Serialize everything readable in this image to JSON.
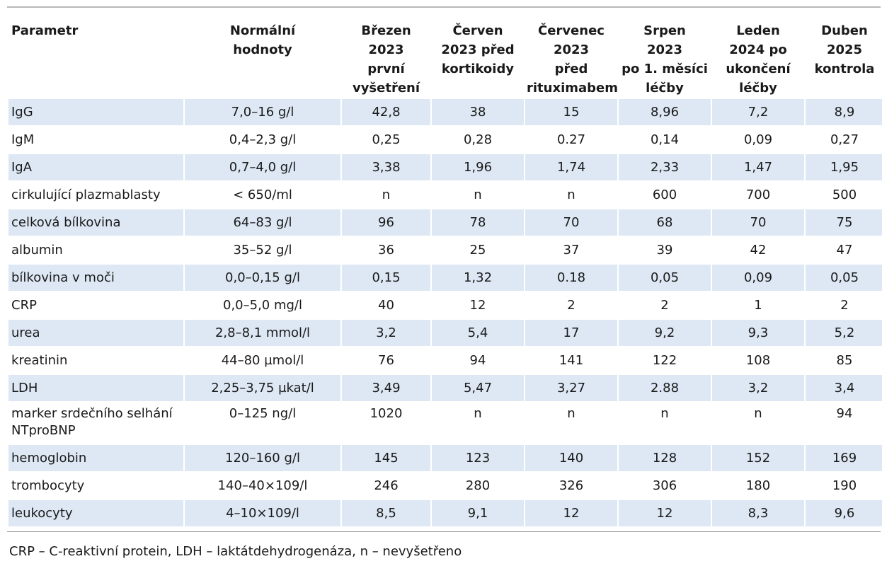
{
  "table": {
    "headers": [
      [
        "Parametr"
      ],
      [
        "Normální",
        "hodnoty"
      ],
      [
        "Březen",
        "2023",
        "první",
        "vyšetření"
      ],
      [
        "Červen",
        "2023 před",
        "kortikoidy"
      ],
      [
        "Červenec",
        "2023",
        "před",
        "rituximabem"
      ],
      [
        "Srpen",
        "2023",
        "po 1. měsíci",
        "léčby"
      ],
      [
        "Leden",
        "2024 po",
        "ukončení",
        "léčby"
      ],
      [
        "Duben",
        "2025",
        "kontrola"
      ]
    ],
    "rows": [
      {
        "shaded": true,
        "cells": [
          [
            "IgG"
          ],
          [
            "7,0–16 g/l"
          ],
          [
            "42,8"
          ],
          [
            "38"
          ],
          [
            "15"
          ],
          [
            "8,96"
          ],
          [
            "7,2"
          ],
          [
            "8,9"
          ]
        ]
      },
      {
        "shaded": false,
        "cells": [
          [
            "IgM"
          ],
          [
            "0,4–2,3 g/l"
          ],
          [
            "0,25"
          ],
          [
            "0,28"
          ],
          [
            "0.27"
          ],
          [
            "0,14"
          ],
          [
            "0,09"
          ],
          [
            "0,27"
          ]
        ]
      },
      {
        "shaded": true,
        "cells": [
          [
            "IgA"
          ],
          [
            "0,7–4,0 g/l"
          ],
          [
            "3,38"
          ],
          [
            "1,96"
          ],
          [
            "1,74"
          ],
          [
            "2,33"
          ],
          [
            "1,47"
          ],
          [
            "1,95"
          ]
        ]
      },
      {
        "shaded": false,
        "cells": [
          [
            "cirkulující plazmablasty"
          ],
          [
            "< 650/ml"
          ],
          [
            "n"
          ],
          [
            "n"
          ],
          [
            "n"
          ],
          [
            "600"
          ],
          [
            "700"
          ],
          [
            "500"
          ]
        ]
      },
      {
        "shaded": true,
        "cells": [
          [
            "celková bílkovina"
          ],
          [
            "64–83 g/l"
          ],
          [
            "96"
          ],
          [
            "78"
          ],
          [
            "70"
          ],
          [
            "68"
          ],
          [
            "70"
          ],
          [
            "75"
          ]
        ]
      },
      {
        "shaded": false,
        "cells": [
          [
            "albumin"
          ],
          [
            "35–52 g/l"
          ],
          [
            "36"
          ],
          [
            "25"
          ],
          [
            "37"
          ],
          [
            "39"
          ],
          [
            "42"
          ],
          [
            "47"
          ]
        ]
      },
      {
        "shaded": true,
        "cells": [
          [
            "bílkovina v moči"
          ],
          [
            "0,0–0,15 g/l"
          ],
          [
            "0,15"
          ],
          [
            "1,32"
          ],
          [
            "0.18"
          ],
          [
            "0,05"
          ],
          [
            "0,09"
          ],
          [
            "0,05"
          ]
        ]
      },
      {
        "shaded": false,
        "cells": [
          [
            "CRP"
          ],
          [
            "0,0–5,0 mg/l"
          ],
          [
            "40"
          ],
          [
            "12"
          ],
          [
            "2"
          ],
          [
            "2"
          ],
          [
            "1"
          ],
          [
            "2"
          ]
        ]
      },
      {
        "shaded": true,
        "cells": [
          [
            "urea"
          ],
          [
            "2,8–8,1 mmol/l"
          ],
          [
            "3,2"
          ],
          [
            "5,4"
          ],
          [
            "17"
          ],
          [
            "9,2"
          ],
          [
            "9,3"
          ],
          [
            "5,2"
          ]
        ]
      },
      {
        "shaded": false,
        "cells": [
          [
            "kreatinin"
          ],
          [
            "44–80 µmol/l"
          ],
          [
            "76"
          ],
          [
            "94"
          ],
          [
            "141"
          ],
          [
            "122"
          ],
          [
            "108"
          ],
          [
            "85"
          ]
        ]
      },
      {
        "shaded": true,
        "cells": [
          [
            "LDH"
          ],
          [
            "2,25–3,75 µkat/l"
          ],
          [
            "3,49"
          ],
          [
            "5,47"
          ],
          [
            "3,27"
          ],
          [
            "2.88"
          ],
          [
            "3,2"
          ],
          [
            "3,4"
          ]
        ]
      },
      {
        "shaded": false,
        "cells": [
          [
            "marker srdečního selhání",
            "NTproBNP"
          ],
          [
            "0–125 ng/l"
          ],
          [
            "1020"
          ],
          [
            "n"
          ],
          [
            "n"
          ],
          [
            "n"
          ],
          [
            "n"
          ],
          [
            "94"
          ]
        ]
      },
      {
        "shaded": true,
        "cells": [
          [
            "hemoglobin"
          ],
          [
            "120–160 g/l"
          ],
          [
            "145"
          ],
          [
            "123"
          ],
          [
            "140"
          ],
          [
            "128"
          ],
          [
            "152"
          ],
          [
            "169"
          ]
        ]
      },
      {
        "shaded": false,
        "cells": [
          [
            "trombocyty"
          ],
          [
            "140–40×109/l"
          ],
          [
            "246"
          ],
          [
            "280"
          ],
          [
            "326"
          ],
          [
            "306"
          ],
          [
            "180"
          ],
          [
            "190"
          ]
        ]
      },
      {
        "shaded": true,
        "cells": [
          [
            "leukocyty"
          ],
          [
            "4–10×109/l"
          ],
          [
            "8,5"
          ],
          [
            "9,1"
          ],
          [
            "12"
          ],
          [
            "12"
          ],
          [
            "8,3"
          ],
          [
            "9,6"
          ]
        ]
      }
    ]
  },
  "footnote": "CRP – C-reaktivní protein, LDH – laktátdehydrogenáza, n – nevyšetřeno",
  "colors": {
    "row_shade": "#dde8f4",
    "rule": "#b9b9b9"
  }
}
